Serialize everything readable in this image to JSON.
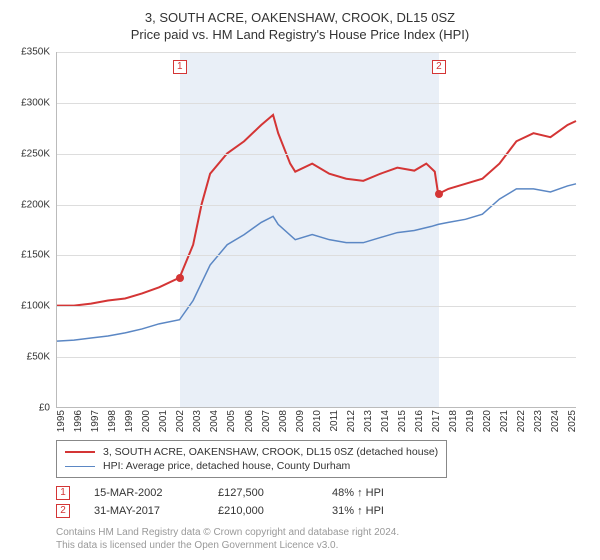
{
  "title": "3, SOUTH ACRE, OAKENSHAW, CROOK, DL15 0SZ",
  "subtitle": "Price paid vs. HM Land Registry's House Price Index (HPI)",
  "chart": {
    "type": "line",
    "background_color": "#ffffff",
    "shade_color": "#e9eff7",
    "grid_color": "#dddddd",
    "x_years": [
      1995,
      1996,
      1997,
      1998,
      1999,
      2000,
      2001,
      2002,
      2003,
      2004,
      2005,
      2006,
      2007,
      2008,
      2009,
      2010,
      2011,
      2012,
      2013,
      2014,
      2015,
      2016,
      2017,
      2018,
      2019,
      2020,
      2021,
      2022,
      2023,
      2024,
      2025
    ],
    "y_ticks": [
      "£0",
      "£50K",
      "£100K",
      "£150K",
      "£200K",
      "£250K",
      "£300K",
      "£350K"
    ],
    "ylim": [
      0,
      350
    ],
    "xlim": [
      1995,
      2025.5
    ],
    "shade_ranges": [
      [
        2002.2,
        2017.4
      ]
    ],
    "subject_series": {
      "label": "3, SOUTH ACRE, OAKENSHAW, CROOK, DL15 0SZ (detached house)",
      "color": "#d43535",
      "width": 2,
      "data": [
        [
          1995,
          100
        ],
        [
          1996,
          100
        ],
        [
          1997,
          102
        ],
        [
          1998,
          105
        ],
        [
          1999,
          107
        ],
        [
          2000,
          112
        ],
        [
          2001,
          118
        ],
        [
          2002.2,
          127.5
        ],
        [
          2003,
          160
        ],
        [
          2003.5,
          200
        ],
        [
          2004,
          230
        ],
        [
          2005,
          250
        ],
        [
          2006,
          262
        ],
        [
          2007,
          278
        ],
        [
          2007.7,
          288
        ],
        [
          2008,
          270
        ],
        [
          2008.7,
          240
        ],
        [
          2009,
          232
        ],
        [
          2010,
          240
        ],
        [
          2011,
          230
        ],
        [
          2012,
          225
        ],
        [
          2013,
          223
        ],
        [
          2014,
          230
        ],
        [
          2015,
          236
        ],
        [
          2016,
          233
        ],
        [
          2016.7,
          240
        ],
        [
          2017.2,
          232
        ],
        [
          2017.4,
          210
        ],
        [
          2018,
          215
        ],
        [
          2019,
          220
        ],
        [
          2020,
          225
        ],
        [
          2021,
          240
        ],
        [
          2022,
          262
        ],
        [
          2023,
          270
        ],
        [
          2024,
          266
        ],
        [
          2025,
          278
        ],
        [
          2025.5,
          282
        ]
      ]
    },
    "hpi_series": {
      "label": "HPI: Average price, detached house, County Durham",
      "color": "#5b87c4",
      "width": 1.5,
      "data": [
        [
          1995,
          65
        ],
        [
          1996,
          66
        ],
        [
          1997,
          68
        ],
        [
          1998,
          70
        ],
        [
          1999,
          73
        ],
        [
          2000,
          77
        ],
        [
          2001,
          82
        ],
        [
          2002.2,
          86
        ],
        [
          2003,
          105
        ],
        [
          2004,
          140
        ],
        [
          2005,
          160
        ],
        [
          2006,
          170
        ],
        [
          2007,
          182
        ],
        [
          2007.7,
          188
        ],
        [
          2008,
          180
        ],
        [
          2009,
          165
        ],
        [
          2010,
          170
        ],
        [
          2011,
          165
        ],
        [
          2012,
          162
        ],
        [
          2013,
          162
        ],
        [
          2014,
          167
        ],
        [
          2015,
          172
        ],
        [
          2016,
          174
        ],
        [
          2017,
          178
        ],
        [
          2017.4,
          180
        ],
        [
          2018,
          182
        ],
        [
          2019,
          185
        ],
        [
          2020,
          190
        ],
        [
          2021,
          205
        ],
        [
          2022,
          215
        ],
        [
          2023,
          215
        ],
        [
          2024,
          212
        ],
        [
          2025,
          218
        ],
        [
          2025.5,
          220
        ]
      ]
    },
    "sale_markers": [
      {
        "n": "1",
        "x": 2002.2,
        "y": 127.5
      },
      {
        "n": "2",
        "x": 2017.4,
        "y": 210
      }
    ],
    "marker_box_color": "#d43535",
    "dot_color": "#d43535",
    "axis_fontsize": 10,
    "title_fontsize": 13
  },
  "legend": {
    "subject": "3, SOUTH ACRE, OAKENSHAW, CROOK, DL15 0SZ (detached house)",
    "hpi": "HPI: Average price, detached house, County Durham"
  },
  "sales": [
    {
      "n": "1",
      "date": "15-MAR-2002",
      "price": "£127,500",
      "hpi": "48% ↑ HPI"
    },
    {
      "n": "2",
      "date": "31-MAY-2017",
      "price": "£210,000",
      "hpi": "31% ↑ HPI"
    }
  ],
  "footer_line1": "Contains HM Land Registry data © Crown copyright and database right 2024.",
  "footer_line2": "This data is licensed under the Open Government Licence v3.0."
}
